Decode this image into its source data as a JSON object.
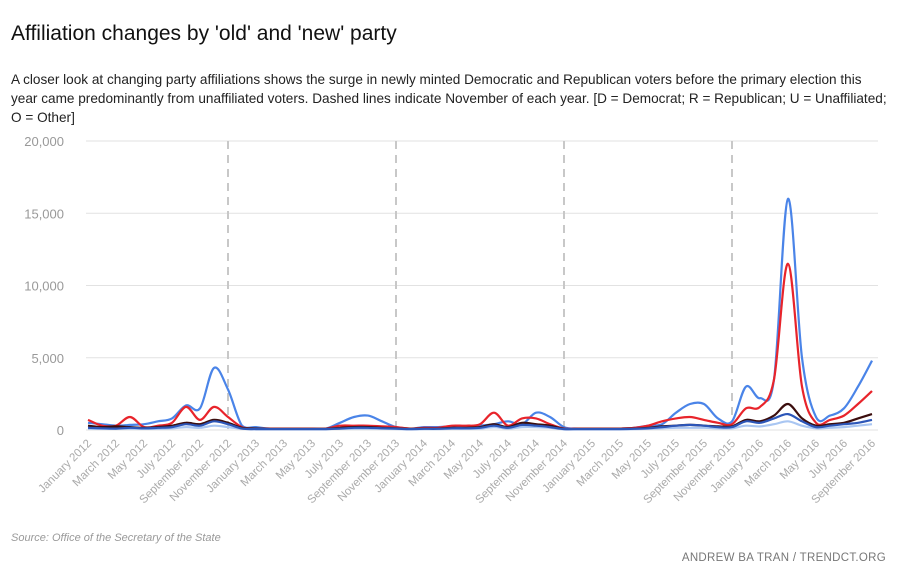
{
  "title": "Affiliation changes by 'old' and 'new' party",
  "subtitle": "A closer look at changing party affiliations shows the surge in newly minted Democratic and Republican voters before the primary election this year came predominantly from unaffiliated voters. Dashed lines indicate November of each year. [D = Democrat; R = Republican; U = Unaffiliated; O = Other]",
  "source": "Source: Office of the Secretary of the State",
  "credit": "ANDREW BA TRAN / TRENDCT.ORG",
  "chart_data": {
    "type": "line",
    "x_start": "January 2012",
    "x_tick_labels": [
      "January 2012",
      "March 2012",
      "May 2012",
      "July 2012",
      "September 2012",
      "November 2012",
      "January 2013",
      "March 2013",
      "May 2013",
      "July 2013",
      "September 2013",
      "November 2013",
      "January 2014",
      "March 2014",
      "May 2014",
      "July 2014",
      "September 2014",
      "November 2014",
      "January 2015",
      "March 2015",
      "May 2015",
      "July 2015",
      "September 2015",
      "November 2015",
      "January 2016",
      "March 2016",
      "May 2016",
      "July 2016",
      "September 2016"
    ],
    "y_ticks": [
      0,
      5000,
      10000,
      15000,
      20000
    ],
    "y_tick_labels": [
      "0",
      "5,000",
      "10,000",
      "15,000",
      "20,000"
    ],
    "ylim": [
      0,
      20000
    ],
    "dashed_lines_at": [
      "November 2012",
      "November 2013",
      "November 2014",
      "November 2015"
    ],
    "grid": "horizontal",
    "colors": {
      "blue": "#4a84e8",
      "red": "#e8242b",
      "dark": "#3b0d0d",
      "lightblue": "#a9c6f2",
      "grid": "#e2e2e2",
      "dash": "#c8c8c8"
    },
    "series": [
      {
        "color": "#4a84e8",
        "values": [
          500,
          400,
          300,
          350,
          400,
          600,
          800,
          1700,
          1500,
          4300,
          2800,
          300,
          200,
          100,
          100,
          100,
          100,
          100,
          500,
          900,
          1000,
          600,
          200,
          100,
          200,
          200,
          250,
          200,
          300,
          400,
          600,
          400,
          1200,
          900,
          200,
          100,
          100,
          100,
          100,
          150,
          300,
          400,
          1200,
          1800,
          1800,
          800,
          600,
          3000,
          2200,
          3500,
          16000,
          5000,
          900,
          1000,
          1500,
          3000,
          4800
        ]
      },
      {
        "color": "#e8242b",
        "values": [
          700,
          300,
          300,
          900,
          200,
          300,
          500,
          1600,
          700,
          1600,
          900,
          200,
          100,
          100,
          100,
          100,
          100,
          100,
          300,
          300,
          300,
          250,
          200,
          100,
          150,
          150,
          300,
          300,
          400,
          1200,
          300,
          800,
          800,
          400,
          100,
          100,
          100,
          100,
          100,
          150,
          300,
          600,
          800,
          900,
          700,
          500,
          400,
          1500,
          1600,
          3500,
          11500,
          3000,
          500,
          700,
          1000,
          1800,
          2700
        ]
      },
      {
        "color": "#3b0d0d",
        "values": [
          300,
          200,
          250,
          200,
          150,
          200,
          300,
          500,
          400,
          700,
          500,
          150,
          100,
          80,
          80,
          80,
          80,
          80,
          150,
          200,
          200,
          150,
          120,
          80,
          100,
          100,
          150,
          150,
          200,
          400,
          200,
          500,
          400,
          300,
          80,
          80,
          80,
          80,
          80,
          100,
          150,
          250,
          300,
          350,
          300,
          250,
          250,
          700,
          600,
          1000,
          1800,
          800,
          300,
          400,
          500,
          800,
          1100
        ]
      },
      {
        "color": "#a9c6f2",
        "values": [
          100,
          80,
          80,
          100,
          80,
          80,
          120,
          200,
          150,
          300,
          200,
          80,
          50,
          50,
          50,
          50,
          50,
          50,
          80,
          100,
          100,
          80,
          70,
          50,
          60,
          60,
          80,
          80,
          100,
          200,
          100,
          200,
          200,
          150,
          50,
          50,
          50,
          50,
          50,
          60,
          80,
          120,
          150,
          150,
          150,
          120,
          120,
          300,
          250,
          400,
          600,
          300,
          120,
          150,
          200,
          300,
          400
        ]
      },
      {
        "color": "#2c56b8",
        "values": [
          150,
          120,
          100,
          150,
          120,
          150,
          200,
          400,
          300,
          600,
          400,
          100,
          60,
          60,
          60,
          60,
          60,
          60,
          100,
          150,
          150,
          120,
          100,
          60,
          80,
          80,
          120,
          120,
          150,
          300,
          150,
          350,
          300,
          200,
          60,
          60,
          60,
          60,
          60,
          80,
          120,
          200,
          300,
          350,
          300,
          200,
          200,
          600,
          500,
          800,
          1100,
          600,
          200,
          300,
          400,
          500,
          700
        ]
      }
    ]
  }
}
